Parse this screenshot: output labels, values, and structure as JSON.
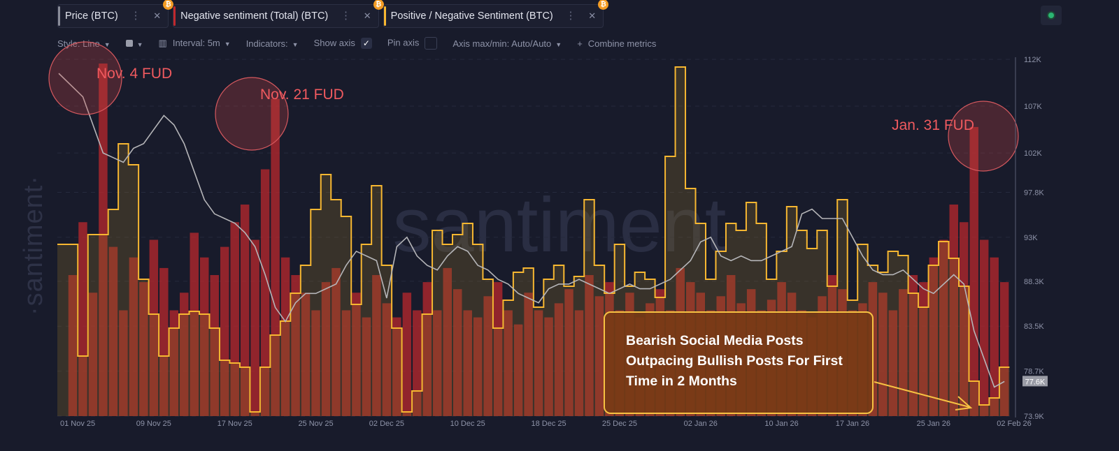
{
  "tabs": [
    {
      "label": "Price (BTC)",
      "color": "#8a8d99",
      "badge": "₿"
    },
    {
      "label": "Negative sentiment (Total) (BTC)",
      "color": "#c0282d",
      "badge": "₿"
    },
    {
      "label": "Positive / Negative Sentiment (BTC)",
      "color": "#f7b731",
      "badge": "₿"
    }
  ],
  "toolbar": {
    "style": "Style: Line",
    "interval": "Interval: 5m",
    "indicators": "Indicators:",
    "show_axis": "Show axis",
    "show_axis_checked": true,
    "pin_axis": "Pin axis",
    "pin_axis_checked": false,
    "axis_maxmin": "Axis max/min: Auto/Auto",
    "combine": "Combine metrics"
  },
  "watermark": "santiment",
  "side_watermark": "·santiment·",
  "annotations": {
    "fud": [
      {
        "label": "Nov. 4 FUD",
        "day": 3
      },
      {
        "label": "Nov. 21 FUD",
        "day": 20
      },
      {
        "label": "Jan. 31 FUD",
        "day": 89
      }
    ],
    "callout": "Bearish Social Media Posts Outpacing Bullish Posts For First Time in 2 Months"
  },
  "chart_data": {
    "type": "line",
    "start_date": "01 Nov 25",
    "x_ticks": [
      {
        "label": "01 Nov 25",
        "day": 0
      },
      {
        "label": "09 Nov 25",
        "day": 8
      },
      {
        "label": "17 Nov 25",
        "day": 16
      },
      {
        "label": "25 Nov 25",
        "day": 24
      },
      {
        "label": "02 Dec 25",
        "day": 31
      },
      {
        "label": "10 Dec 25",
        "day": 39
      },
      {
        "label": "18 Dec 25",
        "day": 47
      },
      {
        "label": "25 Dec 25",
        "day": 54
      },
      {
        "label": "02 Jan 26",
        "day": 62
      },
      {
        "label": "10 Jan 26",
        "day": 70
      },
      {
        "label": "17 Jan 26",
        "day": 77
      },
      {
        "label": "25 Jan 26",
        "day": 85
      },
      {
        "label": "02 Feb 26",
        "day": 93
      }
    ],
    "y_ticks": [
      {
        "label": "112K",
        "v": 112
      },
      {
        "label": "107K",
        "v": 107
      },
      {
        "label": "102K",
        "v": 102
      },
      {
        "label": "97.8K",
        "v": 97.8
      },
      {
        "label": "93K",
        "v": 93
      },
      {
        "label": "88.3K",
        "v": 88.3
      },
      {
        "label": "83.5K",
        "v": 83.5
      },
      {
        "label": "78.7K",
        "v": 78.7
      },
      {
        "label": "73.9K",
        "v": 73.9
      }
    ],
    "ylim": [
      73.9,
      112
    ],
    "current_price_label": "77.6K",
    "current_price": 77.6,
    "series": [
      {
        "name": "Price (BTC)",
        "color": "#b5b5b8",
        "unit": "K USD",
        "values": [
          110.5,
          108,
          105,
          102,
          101.5,
          101,
          102.5,
          103,
          104.5,
          106,
          105,
          103,
          100,
          97,
          95.5,
          95,
          94.5,
          93.5,
          92,
          89,
          85.5,
          84,
          86,
          87,
          87,
          87.5,
          88,
          90,
          91.5,
          91,
          90.5,
          86.5,
          92,
          93,
          91,
          90,
          89.5,
          91,
          92,
          91.5,
          90,
          89.5,
          88.5,
          88,
          87,
          86.5,
          86,
          87.5,
          88,
          88,
          88.5,
          88,
          87.5,
          87,
          87.5,
          88,
          87.5,
          87.5,
          88,
          88.5,
          89.5,
          90.5,
          92.5,
          93,
          91,
          90.5,
          91,
          90.5,
          90.5,
          91,
          91.5,
          92,
          95.5,
          96,
          95,
          95,
          95,
          93,
          91,
          89.5,
          89,
          89,
          89.5,
          88.5,
          87.5,
          87,
          88,
          89,
          88,
          83,
          80,
          77,
          77.6
        ]
      },
      {
        "name": "Negative sentiment (Total) (BTC)",
        "color": "#c0282d",
        "values": [
          40,
          55,
          35,
          100,
          48,
          30,
          45,
          38,
          50,
          42,
          30,
          35,
          52,
          45,
          40,
          48,
          55,
          60,
          50,
          70,
          90,
          45,
          40,
          35,
          30,
          38,
          42,
          30,
          35,
          28,
          40,
          32,
          28,
          35,
          30,
          38,
          30,
          42,
          36,
          30,
          28,
          34,
          38,
          30,
          26,
          35,
          30,
          28,
          32,
          36,
          30,
          40,
          34,
          38,
          30,
          35,
          28,
          32,
          36,
          30,
          42,
          38,
          35,
          30,
          34,
          40,
          32,
          36,
          30,
          33,
          38,
          35,
          30,
          28,
          34,
          40,
          36,
          30,
          32,
          38,
          35,
          30,
          36,
          40,
          38,
          45,
          50,
          60,
          55,
          82,
          50,
          45,
          38
        ]
      },
      {
        "name": "Positive / Negative Sentiment (BTC)",
        "color": "#f7b731",
        "values": [
          1.23,
          0.43,
          1.3,
          1.3,
          1.48,
          1.95,
          1.8,
          0.98,
          0.73,
          0.43,
          0.63,
          0.73,
          0.75,
          0.73,
          0.63,
          0.4,
          0.38,
          0.35,
          0.03,
          0.35,
          0.58,
          0.68,
          0.88,
          1.08,
          1.48,
          1.73,
          1.55,
          1.43,
          0.8,
          1.23,
          1.65,
          1.08,
          0.63,
          0.03,
          0.18,
          0.73,
          1.33,
          1.23,
          1.3,
          1.38,
          1.23,
          0.98,
          0.63,
          0.83,
          1.03,
          1.06,
          0.78,
          0.98,
          1.08,
          0.93,
          1.0,
          1.55,
          1.08,
          0.88,
          1.23,
          0.93,
          1.03,
          0.98,
          0.85,
          1.86,
          2.5,
          1.63,
          1.38,
          0.98,
          1.18,
          1.38,
          1.33,
          1.53,
          1.38,
          0.98,
          1.18,
          1.5,
          1.33,
          1.2,
          1.33,
          0.93,
          1.55,
          0.83,
          1.23,
          1.08,
          1.03,
          1.18,
          1.15,
          0.88,
          0.78,
          1.08,
          1.25,
          1.13,
          0.93,
          0.25,
          0.08,
          0.13,
          0.35
        ]
      }
    ]
  }
}
